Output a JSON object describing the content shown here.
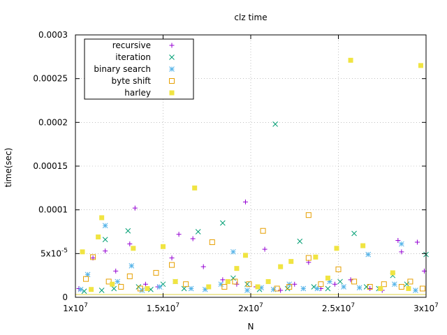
{
  "chart_data": {
    "type": "scatter",
    "title": "clz time",
    "xlabel": "N",
    "ylabel": "time(sec)",
    "xlim": [
      10000000,
      30000000
    ],
    "ylim": [
      0,
      0.0003
    ],
    "grid": true,
    "legend_position": "top-left",
    "x_ticks": [
      {
        "value": 10000000,
        "mantissa": "1x10",
        "exp": "7"
      },
      {
        "value": 15000000,
        "mantissa": "1.5x10",
        "exp": "7"
      },
      {
        "value": 20000000,
        "mantissa": "2x10",
        "exp": "7"
      },
      {
        "value": 25000000,
        "mantissa": "2.5x10",
        "exp": "7"
      },
      {
        "value": 30000000,
        "mantissa": "3x10",
        "exp": "7"
      }
    ],
    "y_ticks": [
      {
        "value": 0,
        "mantissa": "0",
        "exp": ""
      },
      {
        "value": 5e-05,
        "mantissa": "5x10",
        "exp": "-5"
      },
      {
        "value": 0.0001,
        "mantissa": "0.0001",
        "exp": ""
      },
      {
        "value": 0.00015,
        "mantissa": "0.00015",
        "exp": ""
      },
      {
        "value": 0.0002,
        "mantissa": "0.0002",
        "exp": ""
      },
      {
        "value": 0.00025,
        "mantissa": "0.00025",
        "exp": ""
      },
      {
        "value": 0.0003,
        "mantissa": "0.0003",
        "exp": ""
      }
    ],
    "series": [
      {
        "name": "recursive",
        "marker": "plus",
        "color": "#9400d3",
        "points": [
          [
            10200000,
            1e-05
          ],
          [
            11000000,
            4.5e-05
          ],
          [
            11700000,
            5.3e-05
          ],
          [
            12300000,
            3e-05
          ],
          [
            13100000,
            6.1e-05
          ],
          [
            13400000,
            0.000102
          ],
          [
            14000000,
            1.5e-05
          ],
          [
            14700000,
            1.2e-05
          ],
          [
            15500000,
            4.5e-05
          ],
          [
            15900000,
            7.2e-05
          ],
          [
            16700000,
            6.7e-05
          ],
          [
            17300000,
            3.5e-05
          ],
          [
            18400000,
            2e-05
          ],
          [
            19200000,
            1.5e-05
          ],
          [
            19700000,
            0.000109
          ],
          [
            20300000,
            1.2e-05
          ],
          [
            20800000,
            5.5e-05
          ],
          [
            21700000,
            8e-06
          ],
          [
            22500000,
            1.5e-05
          ],
          [
            23300000,
            4e-05
          ],
          [
            24000000,
            1e-05
          ],
          [
            24800000,
            1.5e-05
          ],
          [
            25700000,
            2e-05
          ],
          [
            26800000,
            1e-05
          ],
          [
            27500000,
            8e-06
          ],
          [
            28400000,
            6.5e-05
          ],
          [
            28600000,
            5.2e-05
          ],
          [
            29500000,
            6.3e-05
          ],
          [
            29900000,
            3e-05
          ]
        ]
      },
      {
        "name": "iteration",
        "marker": "x",
        "color": "#009e73",
        "points": [
          [
            10500000,
            7e-06
          ],
          [
            11500000,
            8e-06
          ],
          [
            11700000,
            6.6e-05
          ],
          [
            12200000,
            1e-05
          ],
          [
            13000000,
            7.6e-05
          ],
          [
            13600000,
            1.2e-05
          ],
          [
            14300000,
            9e-06
          ],
          [
            15000000,
            1.5e-05
          ],
          [
            16200000,
            1e-05
          ],
          [
            17000000,
            7.5e-05
          ],
          [
            18400000,
            8.5e-05
          ],
          [
            19000000,
            2.2e-05
          ],
          [
            19800000,
            1.5e-05
          ],
          [
            20500000,
            9e-06
          ],
          [
            21400000,
            0.000198
          ],
          [
            22100000,
            1e-05
          ],
          [
            22800000,
            6.4e-05
          ],
          [
            23600000,
            1.2e-05
          ],
          [
            24400000,
            1e-05
          ],
          [
            25100000,
            1.8e-05
          ],
          [
            25900000,
            7.3e-05
          ],
          [
            26600000,
            1.2e-05
          ],
          [
            27300000,
            1e-05
          ],
          [
            28100000,
            2.5e-05
          ],
          [
            28900000,
            1.5e-05
          ],
          [
            30000000,
            4.9e-05
          ]
        ]
      },
      {
        "name": "binary search",
        "marker": "star",
        "color": "#56b4e9",
        "points": [
          [
            10300000,
            9e-06
          ],
          [
            10700000,
            2.6e-05
          ],
          [
            11700000,
            8.2e-05
          ],
          [
            12400000,
            1.8e-05
          ],
          [
            13200000,
            3.6e-05
          ],
          [
            13800000,
            8e-06
          ],
          [
            14800000,
            1.2e-05
          ],
          [
            15700000,
            1.8e-05
          ],
          [
            16600000,
            1e-05
          ],
          [
            17400000,
            9e-06
          ],
          [
            18300000,
            1.5e-05
          ],
          [
            19000000,
            5.2e-05
          ],
          [
            19800000,
            8e-06
          ],
          [
            20600000,
            1.1e-05
          ],
          [
            21300000,
            9e-06
          ],
          [
            22200000,
            1.5e-05
          ],
          [
            23000000,
            1e-05
          ],
          [
            23800000,
            1e-05
          ],
          [
            24500000,
            1.8e-05
          ],
          [
            25300000,
            1.2e-05
          ],
          [
            26200000,
            1.1e-05
          ],
          [
            26700000,
            4.9e-05
          ],
          [
            27400000,
            1e-05
          ],
          [
            28200000,
            1.5e-05
          ],
          [
            28600000,
            6.1e-05
          ],
          [
            29400000,
            8e-06
          ]
        ]
      },
      {
        "name": "byte shift",
        "marker": "open-square",
        "color": "#e69f00",
        "points": [
          [
            10600000,
            2.1e-05
          ],
          [
            11000000,
            4.6e-05
          ],
          [
            11900000,
            1.8e-05
          ],
          [
            12600000,
            1.2e-05
          ],
          [
            13100000,
            2.4e-05
          ],
          [
            13700000,
            1e-05
          ],
          [
            14600000,
            2.8e-05
          ],
          [
            15500000,
            3.7e-05
          ],
          [
            16300000,
            1.5e-05
          ],
          [
            17800000,
            6.3e-05
          ],
          [
            18500000,
            1.2e-05
          ],
          [
            19100000,
            1.8e-05
          ],
          [
            19900000,
            1.5e-05
          ],
          [
            20700000,
            7.6e-05
          ],
          [
            21500000,
            1e-05
          ],
          [
            22200000,
            1.2e-05
          ],
          [
            23300000,
            9.4e-05
          ],
          [
            23300000,
            4.5e-05
          ],
          [
            24000000,
            1.5e-05
          ],
          [
            25000000,
            3.2e-05
          ],
          [
            25900000,
            1.8e-05
          ],
          [
            26800000,
            1.2e-05
          ],
          [
            27600000,
            1.5e-05
          ],
          [
            28600000,
            1.2e-05
          ],
          [
            29100000,
            1.8e-05
          ],
          [
            29800000,
            1e-05
          ]
        ]
      },
      {
        "name": "harley",
        "marker": "filled-square",
        "color": "#f0e442",
        "points": [
          [
            10400000,
            5.2e-05
          ],
          [
            10900000,
            9e-06
          ],
          [
            11300000,
            6.9e-05
          ],
          [
            11500000,
            9.1e-05
          ],
          [
            12100000,
            1.5e-05
          ],
          [
            13300000,
            5.6e-05
          ],
          [
            14100000,
            1e-05
          ],
          [
            15000000,
            5.8e-05
          ],
          [
            15700000,
            1.8e-05
          ],
          [
            16800000,
            0.000125
          ],
          [
            17600000,
            1.2e-05
          ],
          [
            18700000,
            1.8e-05
          ],
          [
            19200000,
            3.3e-05
          ],
          [
            19700000,
            4.8e-05
          ],
          [
            20400000,
            1.2e-05
          ],
          [
            21000000,
            1.8e-05
          ],
          [
            21700000,
            3.5e-05
          ],
          [
            22300000,
            4.1e-05
          ],
          [
            23700000,
            4.6e-05
          ],
          [
            24400000,
            2.2e-05
          ],
          [
            24900000,
            5.6e-05
          ],
          [
            25700000,
            0.000271
          ],
          [
            26400000,
            5.9e-05
          ],
          [
            27400000,
            1e-05
          ],
          [
            28100000,
            2.8e-05
          ],
          [
            29000000,
            1e-05
          ],
          [
            29700000,
            0.000265
          ]
        ]
      }
    ]
  }
}
